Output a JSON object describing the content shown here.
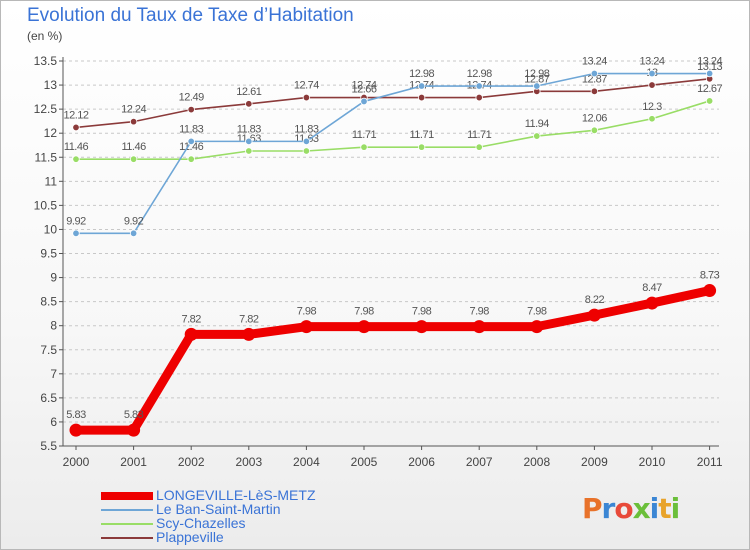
{
  "header": {
    "title": "Evolution du Taux de Taxe d’Habitation",
    "unit_label": "(en %)"
  },
  "chart_data": {
    "type": "line",
    "x": [
      "2000",
      "2001",
      "2002",
      "2003",
      "2004",
      "2005",
      "2006",
      "2007",
      "2008",
      "2009",
      "2010",
      "2011"
    ],
    "ylim": [
      5.5,
      13.5
    ],
    "y_ticks": [
      "5.5",
      "6",
      "6.5",
      "7",
      "7.5",
      "8",
      "8.5",
      "9",
      "9.5",
      "10",
      "10.5",
      "11",
      "11.5",
      "12",
      "12.5",
      "13",
      "13.5"
    ],
    "grid": "dashed horizontal",
    "legend_position": "bottom-left",
    "series": [
      {
        "name": "LONGEVILLE-LèS-METZ",
        "color": "#ee0000",
        "values": [
          5.83,
          5.83,
          7.82,
          7.82,
          7.98,
          7.98,
          7.98,
          7.98,
          7.98,
          8.22,
          8.47,
          8.73
        ],
        "labels": [
          "5.83",
          "5.83",
          "7.82",
          "7.82",
          "7.98",
          "7.98",
          "7.98",
          "7.98",
          "7.98",
          "8.22",
          "8.47",
          "8.73"
        ]
      },
      {
        "name": "Le Ban-Saint-Martin",
        "color": "#6ea6d6",
        "values": [
          9.92,
          9.92,
          11.83,
          11.83,
          11.83,
          12.66,
          12.98,
          12.98,
          12.98,
          13.24,
          13.24,
          13.24
        ],
        "labels": [
          "9.92",
          "9.92",
          "11.83",
          "11.83",
          "11.83",
          "12.66",
          "12.98",
          "12.98",
          "12.98",
          "13.24",
          "13.24",
          "13.24"
        ]
      },
      {
        "name": "Scy-Chazelles",
        "color": "#99dd66",
        "values": [
          11.46,
          11.46,
          11.46,
          11.63,
          11.63,
          11.71,
          11.71,
          11.71,
          11.94,
          12.06,
          12.3,
          12.67
        ],
        "labels": [
          "11.46",
          "11.46",
          "11.46",
          "11.63",
          "11.63",
          "11.71",
          "11.71",
          "11.71",
          "11.94",
          "12.06",
          "12.3",
          "12.67"
        ]
      },
      {
        "name": "Plappeville",
        "color": "#8b3a3a",
        "values": [
          12.12,
          12.24,
          12.49,
          12.61,
          12.74,
          12.74,
          12.74,
          12.74,
          12.87,
          12.87,
          13.0,
          13.13
        ],
        "labels": [
          "12.12",
          "12.24",
          "12.49",
          "12.61",
          "12.74",
          "12.74",
          "12.74",
          "12.74",
          "12.87",
          "12.87",
          "13",
          "13.13"
        ]
      }
    ]
  },
  "logo": {
    "text": "Proxiti",
    "colors": [
      "#e8722a",
      "#3b86d4",
      "#e84a3a",
      "#6bbf3a",
      "#3b86d4",
      "#e8a32a",
      "#6bbf3a"
    ]
  }
}
